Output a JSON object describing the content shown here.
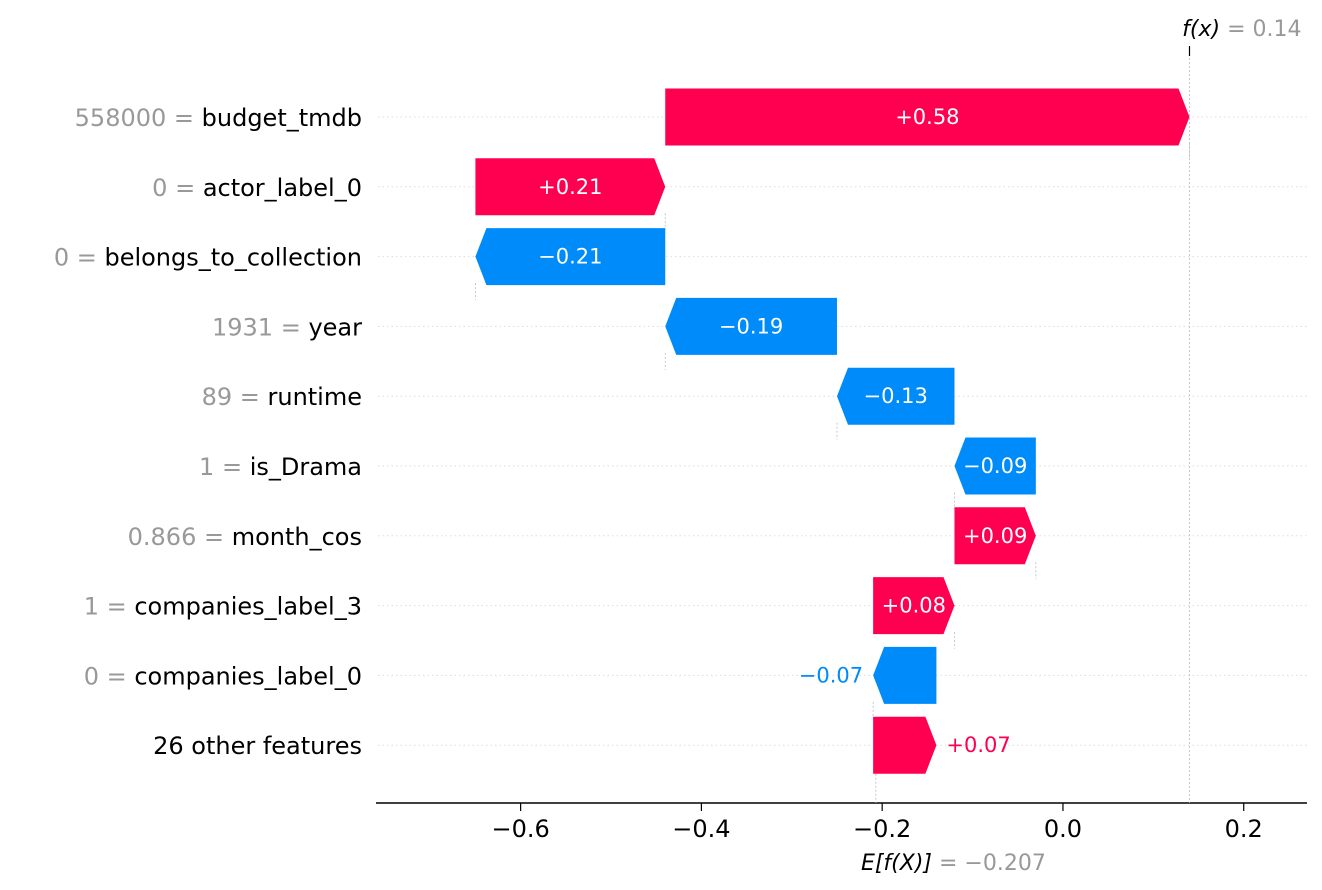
{
  "chart_data": {
    "type": "waterfall",
    "fx": {
      "label": "f(x)",
      "eq": "= 0.14",
      "value": 0.14
    },
    "efx": {
      "label": "E[f(X)]",
      "eq": "= −0.207",
      "value": -0.207
    },
    "features": [
      {
        "value": "558000",
        "name": "budget_tmdb",
        "shap": 0.58,
        "label": "+0.58",
        "start": -0.44,
        "end": 0.14
      },
      {
        "value": "0",
        "name": "actor_label_0",
        "shap": 0.21,
        "label": "+0.21",
        "start": -0.65,
        "end": -0.44
      },
      {
        "value": "0",
        "name": "belongs_to_collection",
        "shap": -0.21,
        "label": "−0.21",
        "start": -0.44,
        "end": -0.65
      },
      {
        "value": "1931",
        "name": "year",
        "shap": -0.19,
        "label": "−0.19",
        "start": -0.25,
        "end": -0.44
      },
      {
        "value": "89",
        "name": "runtime",
        "shap": -0.13,
        "label": "−0.13",
        "start": -0.12,
        "end": -0.25
      },
      {
        "value": "1",
        "name": "is_Drama",
        "shap": -0.09,
        "label": "−0.09",
        "start": -0.03,
        "end": -0.12
      },
      {
        "value": "0.866",
        "name": "month_cos",
        "shap": 0.09,
        "label": "+0.09",
        "start": -0.12,
        "end": -0.03
      },
      {
        "value": "1",
        "name": "companies_label_3",
        "shap": 0.08,
        "label": "+0.08",
        "start": -0.21,
        "end": -0.12
      },
      {
        "value": "0",
        "name": "companies_label_0",
        "shap": -0.07,
        "label": "−0.07",
        "start": -0.14,
        "end": -0.21
      },
      {
        "value": "",
        "name": "26 other features",
        "shap": 0.07,
        "label": "+0.07",
        "start": -0.21,
        "end": -0.14
      }
    ],
    "xticks": [
      -0.6,
      -0.4,
      -0.2,
      0.0,
      0.2
    ],
    "xtick_labels": [
      "−0.6",
      "−0.4",
      "−0.2",
      "0.0",
      "0.2"
    ],
    "xlim": [
      -0.76,
      0.27
    ],
    "colors": {
      "positive": "#ff0051",
      "negative": "#008bfb",
      "feature_value": "#999999",
      "feature_name": "#000000"
    }
  }
}
